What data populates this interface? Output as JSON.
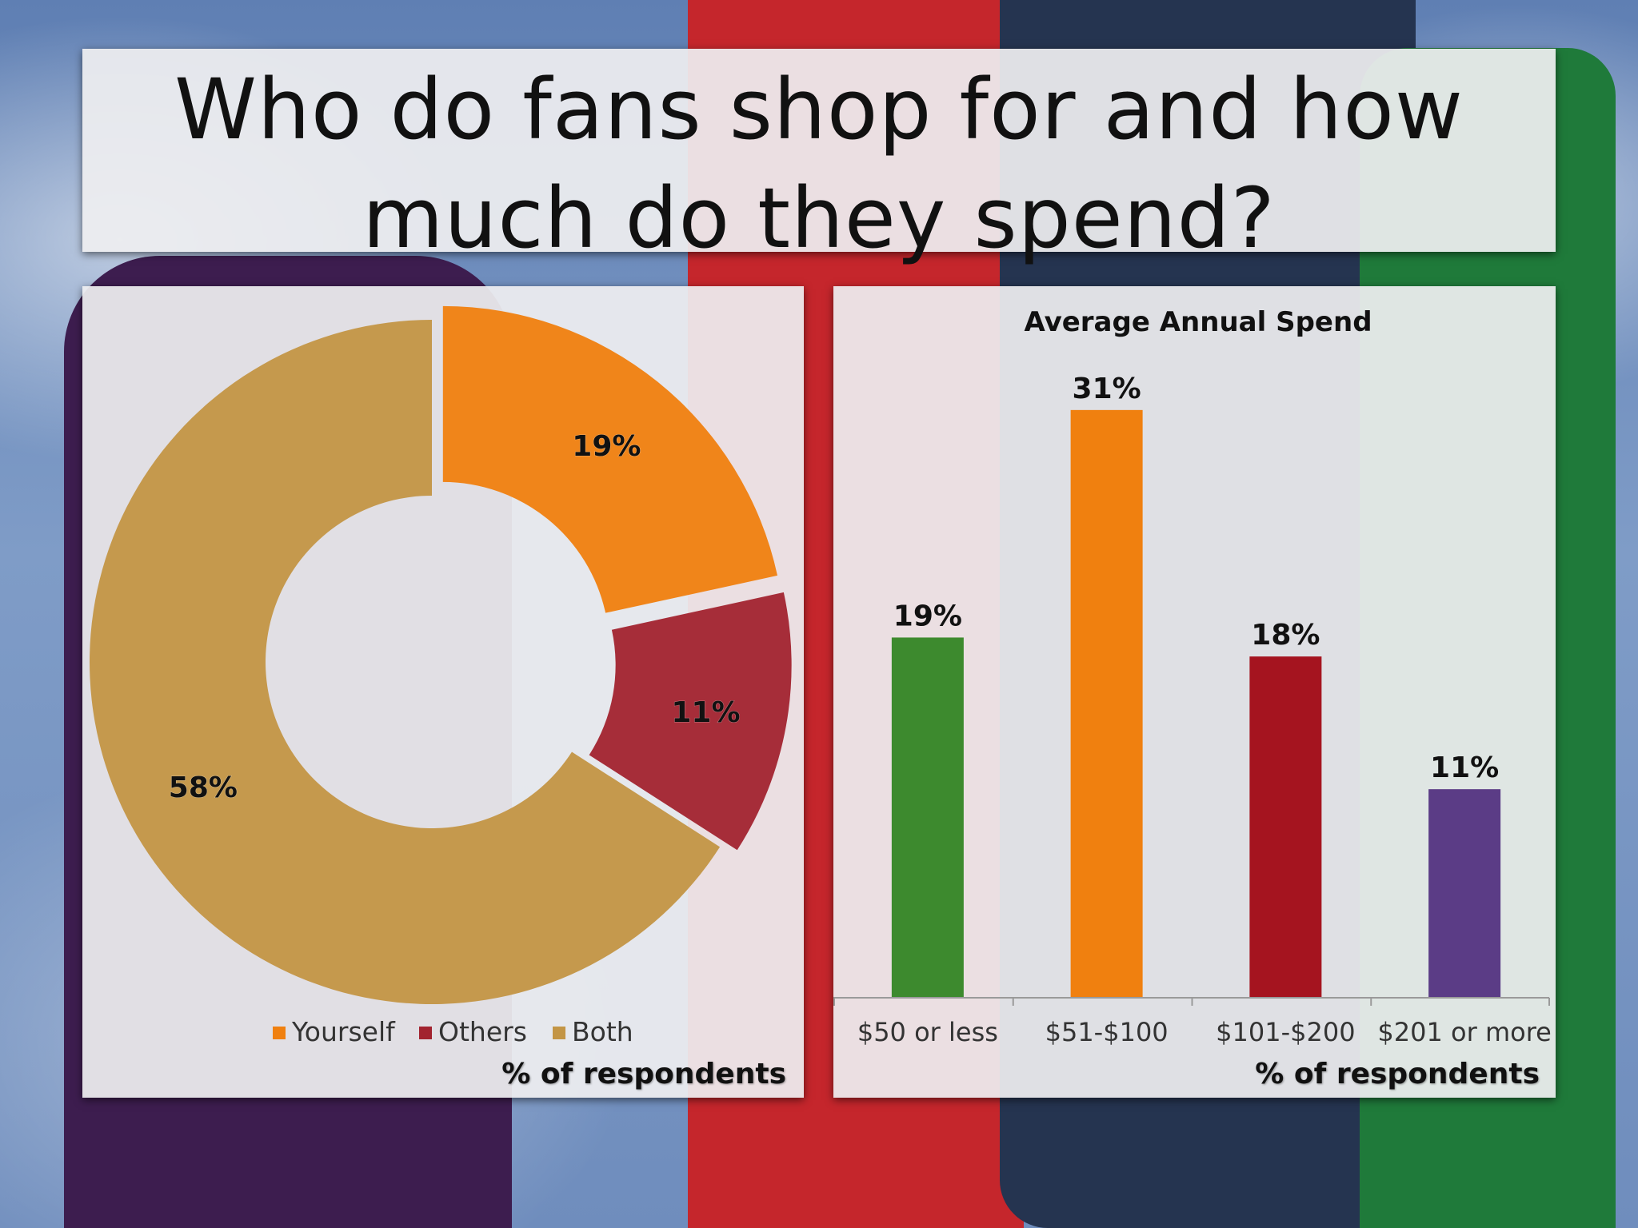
{
  "title": "Who do fans shop for and how much do they spend?",
  "colors": {
    "orange": "#F0800F",
    "red": "#A2232F",
    "gold": "#C39545",
    "green": "#3D8A2E",
    "crimson": "#A5141F",
    "purple": "#5B3C86"
  },
  "chart_data": [
    {
      "type": "pie",
      "variant": "donut",
      "title": "",
      "categories": [
        "Yourself",
        "Others",
        "Both"
      ],
      "values": [
        19,
        11,
        58
      ],
      "labels": [
        "19%",
        "11%",
        "58%"
      ],
      "colors": [
        "#F0800F",
        "#A2232F",
        "#C39545"
      ],
      "legend": "bottom",
      "footnote": "% of respondents"
    },
    {
      "type": "bar",
      "title": "Average Annual Spend",
      "categories": [
        "$50 or less",
        "$51-$100",
        "$101-$200",
        "$201 or more"
      ],
      "values": [
        19,
        31,
        18,
        11
      ],
      "labels": [
        "19%",
        "31%",
        "18%",
        "11%"
      ],
      "colors": [
        "#3D8A2E",
        "#F0800F",
        "#A5141F",
        "#5B3C86"
      ],
      "ylim": [
        0,
        35
      ],
      "grid": false,
      "footnote": "% of respondents"
    }
  ]
}
